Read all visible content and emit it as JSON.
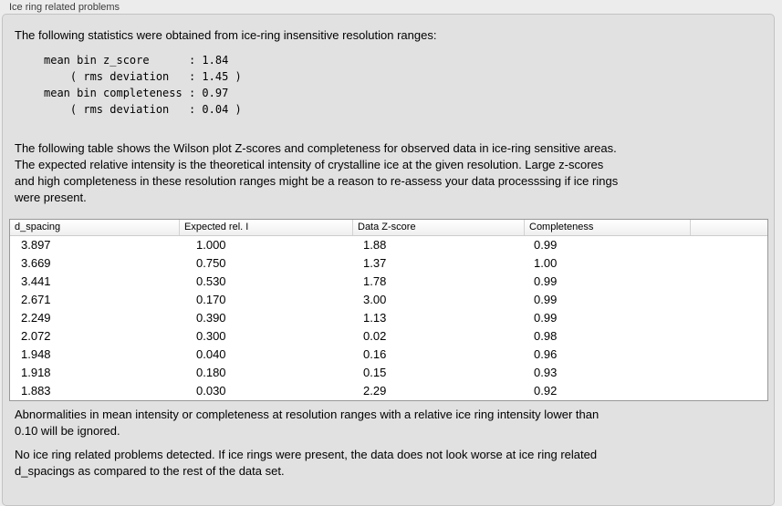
{
  "panel": {
    "title": "Ice ring related problems"
  },
  "stats": {
    "intro": "The following statistics were obtained from ice-ring insensitive resolution ranges:",
    "block": "mean bin z_score      : 1.84\n    ( rms deviation   : 1.45 )\nmean bin completeness : 0.97\n    ( rms deviation   : 0.04 )"
  },
  "table_intro": "The following table shows the Wilson plot Z-scores and completeness for observed data in ice-ring sensitive areas.\nThe expected relative intensity is the theoretical intensity of crystalline ice at the given resolution. Large z-scores\nand high completeness in these resolution ranges might be a reason to re-assess your data processsing if ice rings\nwere present.",
  "table": {
    "columns": [
      "d_spacing",
      "Expected rel. I",
      "Data Z-score",
      "Completeness",
      ""
    ],
    "rows": [
      [
        "3.897",
        "1.000",
        "1.88",
        "0.99"
      ],
      [
        "3.669",
        "0.750",
        "1.37",
        "1.00"
      ],
      [
        "3.441",
        "0.530",
        "1.78",
        "0.99"
      ],
      [
        "2.671",
        "0.170",
        "3.00",
        "0.99"
      ],
      [
        "2.249",
        "0.390",
        "1.13",
        "0.99"
      ],
      [
        "2.072",
        "0.300",
        "0.02",
        "0.98"
      ],
      [
        "1.948",
        "0.040",
        "0.16",
        "0.96"
      ],
      [
        "1.918",
        "0.180",
        "0.15",
        "0.93"
      ],
      [
        "1.883",
        "0.030",
        "2.29",
        "0.92"
      ]
    ]
  },
  "notes": {
    "ignore_note": "Abnormalities in mean intensity or completeness at resolution ranges with a relative ice ring intensity lower than\n0.10 will be ignored.",
    "conclusion": "No ice ring related problems detected. If ice rings were present, the data does not look worse at ice ring related\nd_spacings as compared to the rest of the data set."
  }
}
